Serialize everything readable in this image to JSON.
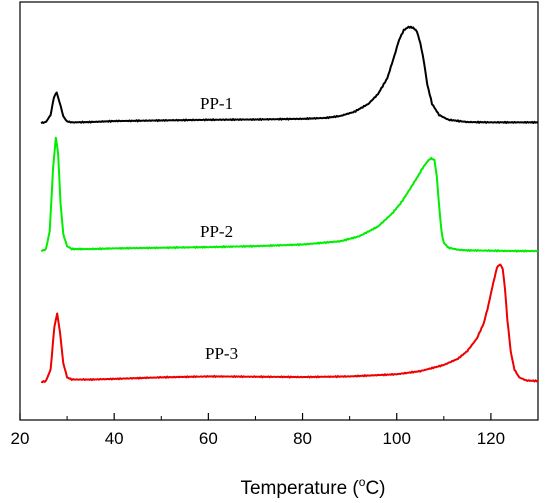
{
  "chart_data": {
    "type": "line",
    "title": "",
    "xlabel": "Temperature (°C)",
    "xlabel_parts": {
      "pre": "Temperature (",
      "sup": "o",
      "post": "C)"
    },
    "ylabel": "",
    "xlim": [
      20,
      130
    ],
    "xticks": [
      20,
      40,
      60,
      80,
      100,
      120
    ],
    "y_ticks_shown": false,
    "grid": false,
    "legend": "none",
    "series": [
      {
        "name": "PP-1",
        "color": "#000000",
        "x": [
          24.5,
          25.5,
          26.5,
          27.2,
          27.8,
          28.4,
          29.2,
          30,
          31,
          35,
          40,
          50,
          60,
          70,
          80,
          85,
          88,
          91,
          94,
          96,
          98,
          99.5,
          100.5,
          101.5,
          102.5,
          103.5,
          104.3,
          105,
          105.8,
          106.5,
          107.5,
          109,
          111,
          115,
          120,
          125,
          130
        ],
        "values": [
          0.0,
          0.3,
          2.5,
          8.0,
          9.5,
          6.5,
          2.0,
          0.5,
          0.2,
          0.3,
          0.6,
          0.8,
          1.0,
          1.1,
          1.3,
          1.6,
          2.2,
          3.5,
          6.0,
          9.0,
          14.0,
          21.0,
          26.0,
          29.0,
          30.0,
          29.8,
          28.5,
          25.0,
          19.0,
          12.0,
          6.0,
          2.5,
          1.0,
          0.3,
          0.2,
          0.2,
          0.2
        ]
      },
      {
        "name": "PP-2",
        "color": "#00ee00",
        "x": [
          24.5,
          25.5,
          26.3,
          27,
          27.6,
          28.1,
          28.6,
          29.2,
          30,
          31,
          35,
          40,
          50,
          60,
          70,
          80,
          88,
          92,
          96,
          99,
          101,
          103,
          104.5,
          105.5,
          106.5,
          107.3,
          108,
          108.5,
          109,
          109.5,
          110,
          111,
          113,
          115,
          120,
          125,
          130
        ],
        "values": [
          0.0,
          0.5,
          6.0,
          25.0,
          35.0,
          30.0,
          15.0,
          5.0,
          1.5,
          0.6,
          0.6,
          0.8,
          1.0,
          1.2,
          1.5,
          2.0,
          3.0,
          4.5,
          7.5,
          11.5,
          15.0,
          19.5,
          23.0,
          25.5,
          27.5,
          28.5,
          28.0,
          23.0,
          14.0,
          6.0,
          2.5,
          1.0,
          0.4,
          0.2,
          0.1,
          0.0,
          0.0
        ]
      },
      {
        "name": "PP-3",
        "color": "#ee0000",
        "x": [
          24.5,
          25.5,
          26.5,
          27.3,
          27.9,
          28.5,
          29.2,
          30,
          31,
          35,
          40,
          50,
          60,
          70,
          80,
          90,
          100,
          105,
          110,
          113,
          115,
          117,
          118.5,
          119.5,
          120.5,
          121.3,
          122,
          122.5,
          123,
          123.5,
          124.2,
          125,
          126,
          127.5,
          130
        ],
        "values": [
          0.0,
          0.3,
          4.0,
          18.0,
          22.0,
          16.0,
          6.0,
          1.5,
          0.8,
          0.8,
          1.0,
          1.5,
          1.8,
          1.7,
          1.6,
          1.8,
          2.5,
          3.5,
          5.5,
          7.5,
          10.0,
          14.0,
          19.0,
          25.0,
          32.0,
          37.0,
          38.0,
          36.5,
          30.0,
          20.0,
          10.0,
          4.0,
          1.5,
          0.5,
          0.3
        ]
      }
    ]
  }
}
